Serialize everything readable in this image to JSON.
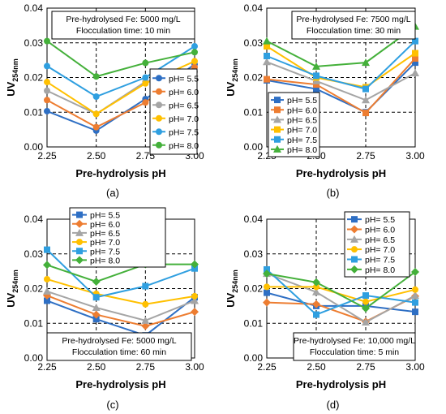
{
  "chart_data": [
    {
      "type": "line",
      "panel_label": "(a)",
      "annotation": [
        "Pre-hydrolysed Fe: 5000 mg/L",
        "Flocculation time: 10 min"
      ],
      "xlabel": "Pre-hydrolysis pH",
      "ylabel": "UV",
      "ylabel_sub": "254nm",
      "x": [
        2.25,
        2.5,
        2.75,
        3.0
      ],
      "x_ticks": [
        "2.25",
        "2.50",
        "2.75",
        "3.00"
      ],
      "y_ticks": [
        "0.00",
        "0.01",
        "0.02",
        "0.03",
        "0.04"
      ],
      "ylim": [
        0,
        0.04
      ],
      "grid": "dashed",
      "legend_placement": "bottom-right",
      "series": [
        {
          "name": "pH= 5.5",
          "color": "#2e6fc4",
          "marker": "circle",
          "values": [
            0.0103,
            0.0047,
            0.0138,
            0.0238
          ]
        },
        {
          "name": "pH= 6.0",
          "color": "#ed7d31",
          "marker": "circle",
          "values": [
            0.0135,
            0.0057,
            0.0128,
            0.023
          ]
        },
        {
          "name": "pH= 6.5",
          "color": "#a5a5a5",
          "marker": "circle",
          "values": [
            0.0162,
            0.0095,
            0.0188,
            0.0217
          ]
        },
        {
          "name": "pH= 7.0",
          "color": "#ffc000",
          "marker": "circle",
          "values": [
            0.0187,
            0.0095,
            0.0183,
            0.0247
          ]
        },
        {
          "name": "pH= 7.5",
          "color": "#2f9fe0",
          "marker": "circle",
          "values": [
            0.0233,
            0.0145,
            0.02,
            0.029
          ]
        },
        {
          "name": "pH= 8.0",
          "color": "#44b03a",
          "marker": "circle",
          "values": [
            0.0305,
            0.0203,
            0.0242,
            0.0273
          ]
        }
      ]
    },
    {
      "type": "line",
      "panel_label": "(b)",
      "annotation": [
        "Pre-hydrolysed Fe: 7500 mg/L",
        "Flocculation time: 30 min"
      ],
      "xlabel": "Pre-hydrolysis pH",
      "ylabel": "UV",
      "ylabel_sub": "254nm",
      "x": [
        2.25,
        2.5,
        2.75,
        3.0
      ],
      "x_ticks": [
        "2.25",
        "2.50",
        "2.75",
        "3.00"
      ],
      "y_ticks": [
        "0.00",
        "0.01",
        "0.02",
        "0.03",
        "0.04"
      ],
      "ylim": [
        0,
        0.04
      ],
      "grid": "dashed",
      "legend_placement": "bottom-left",
      "series": [
        {
          "name": "pH= 5.5",
          "color": "#2e6fc4",
          "marker": "square",
          "values": [
            0.0192,
            0.0167,
            0.01,
            0.0243
          ]
        },
        {
          "name": "pH= 6.0",
          "color": "#ed7d31",
          "marker": "square",
          "values": [
            0.0195,
            0.018,
            0.0098,
            0.0255
          ]
        },
        {
          "name": "pH= 6.5",
          "color": "#a5a5a5",
          "marker": "triangle",
          "values": [
            0.0245,
            0.019,
            0.0135,
            0.0213
          ]
        },
        {
          "name": "pH= 7.0",
          "color": "#ffc000",
          "marker": "square",
          "values": [
            0.029,
            0.02,
            0.0172,
            0.027
          ]
        },
        {
          "name": "pH= 7.5",
          "color": "#2f9fe0",
          "marker": "square",
          "values": [
            0.0262,
            0.0205,
            0.0167,
            0.0305
          ]
        },
        {
          "name": "pH= 8.0",
          "color": "#44b03a",
          "marker": "triangle",
          "values": [
            0.0305,
            0.0232,
            0.0243,
            0.0347
          ]
        }
      ]
    },
    {
      "type": "line",
      "panel_label": "(c)",
      "annotation": [
        "Pre-hydrolysed Fe: 5000 mg/L",
        "Flocculation time: 60 min"
      ],
      "xlabel": "Pre-hydrolysis pH",
      "ylabel": "UV",
      "ylabel_sub": "254nm",
      "x": [
        2.25,
        2.5,
        2.75,
        3.0
      ],
      "x_ticks": [
        "2.25",
        "2.50",
        "2.75",
        "3.00"
      ],
      "y_ticks": [
        "0.00",
        "0.01",
        "0.02",
        "0.03",
        "0.04"
      ],
      "ylim": [
        0,
        0.04
      ],
      "grid": "dashed",
      "legend_placement": "top-right",
      "series": [
        {
          "name": "pH= 5.5",
          "color": "#2e6fc4",
          "marker": "square",
          "values": [
            0.0165,
            0.0112,
            0.0065,
            0.0175
          ]
        },
        {
          "name": "pH= 6.0",
          "color": "#ed7d31",
          "marker": "diamond",
          "values": [
            0.018,
            0.0125,
            0.0092,
            0.0133
          ]
        },
        {
          "name": "pH= 6.5",
          "color": "#a5a5a5",
          "marker": "triangle",
          "values": [
            0.0192,
            0.0145,
            0.0108,
            0.0165
          ]
        },
        {
          "name": "pH= 7.0",
          "color": "#ffc000",
          "marker": "circle",
          "values": [
            0.0227,
            0.0185,
            0.0155,
            0.0178
          ]
        },
        {
          "name": "pH= 7.5",
          "color": "#2f9fe0",
          "marker": "square",
          "values": [
            0.0312,
            0.0175,
            0.0207,
            0.0258
          ]
        },
        {
          "name": "pH= 8.0",
          "color": "#44b03a",
          "marker": "diamond",
          "values": [
            0.0268,
            0.022,
            0.027,
            0.027
          ]
        }
      ]
    },
    {
      "type": "line",
      "panel_label": "(d)",
      "annotation": [
        "Pre-hydrolysed Fe: 10,000 mg/L",
        "Flocculation time: 5 min"
      ],
      "xlabel": "Pre-hydrolysis pH",
      "ylabel": "UV",
      "ylabel_sub": "254nm",
      "x": [
        2.25,
        2.5,
        2.75,
        3.0
      ],
      "x_ticks": [
        "2.25",
        "2.50",
        "2.75",
        "3.00"
      ],
      "y_ticks": [
        "0.00",
        "0.01",
        "0.02",
        "0.03",
        "0.04"
      ],
      "ylim": [
        0,
        0.04
      ],
      "grid": "dashed",
      "legend_placement": "top-right",
      "series": [
        {
          "name": "pH= 5.5",
          "color": "#2e6fc4",
          "marker": "square",
          "values": [
            0.0188,
            0.015,
            0.015,
            0.0133
          ]
        },
        {
          "name": "pH= 6.0",
          "color": "#ed7d31",
          "marker": "diamond",
          "values": [
            0.016,
            0.0155,
            0.0105,
            0.0178
          ]
        },
        {
          "name": "pH= 6.5",
          "color": "#a5a5a5",
          "marker": "triangle",
          "values": [
            0.0243,
            0.019,
            0.0103,
            0.018
          ]
        },
        {
          "name": "pH= 7.0",
          "color": "#ffc000",
          "marker": "circle",
          "values": [
            0.0205,
            0.0205,
            0.0162,
            0.0197
          ]
        },
        {
          "name": "pH= 7.5",
          "color": "#2f9fe0",
          "marker": "square",
          "values": [
            0.0255,
            0.0125,
            0.018,
            0.016
          ]
        },
        {
          "name": "pH= 8.0",
          "color": "#44b03a",
          "marker": "diamond",
          "values": [
            0.0243,
            0.0218,
            0.0143,
            0.0248
          ]
        }
      ]
    }
  ]
}
